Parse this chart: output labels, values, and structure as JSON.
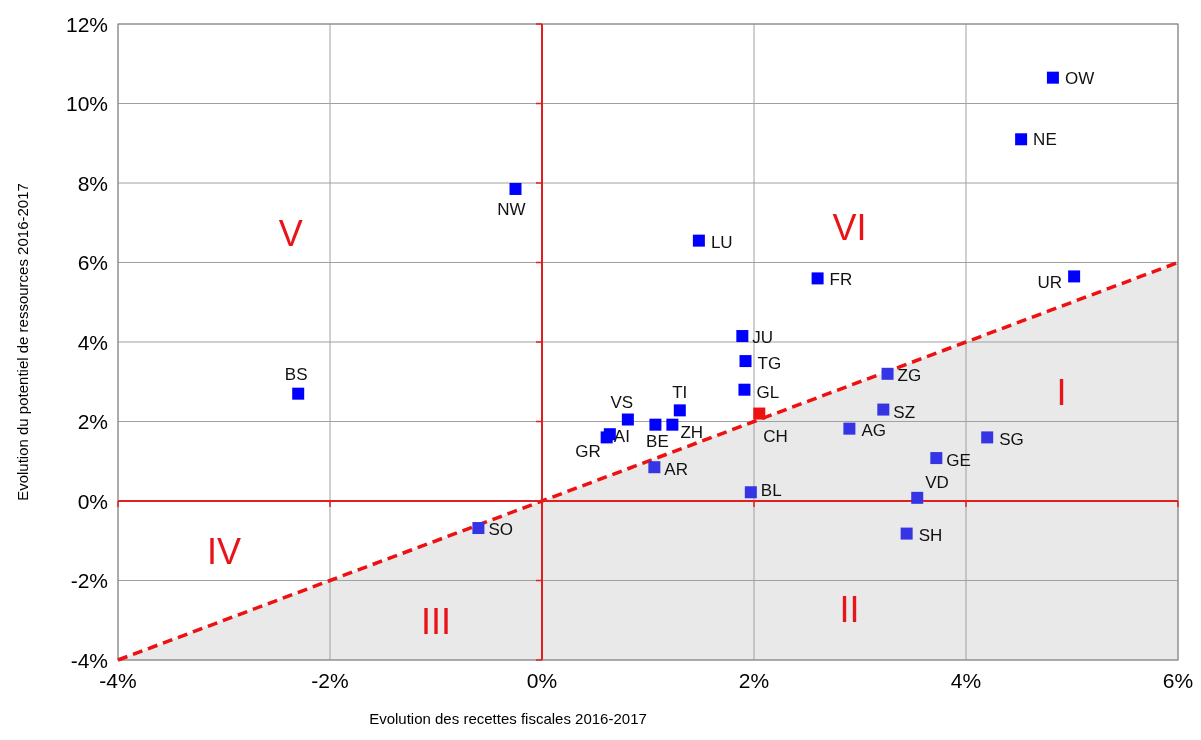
{
  "chart_data": {
    "type": "scatter",
    "xlabel": "Evolution  des recettes fiscales 2016-2017",
    "ylabel": "Evolution du potentiel de ressources 2016-2017",
    "xlim": [
      -4,
      6
    ],
    "ylim": [
      -4,
      12
    ],
    "xticks": [
      {
        "value": -4,
        "label": "-4%"
      },
      {
        "value": -2,
        "label": "-2%"
      },
      {
        "value": 0,
        "label": "0%"
      },
      {
        "value": 2,
        "label": "2%"
      },
      {
        "value": 4,
        "label": "4%"
      },
      {
        "value": 6,
        "label": "6%"
      }
    ],
    "yticks": [
      {
        "value": -4,
        "label": "-4%"
      },
      {
        "value": -2,
        "label": "-2%"
      },
      {
        "value": 0,
        "label": "0%"
      },
      {
        "value": 2,
        "label": "2%"
      },
      {
        "value": 4,
        "label": "4%"
      },
      {
        "value": 6,
        "label": "6%"
      },
      {
        "value": 8,
        "label": "8%"
      },
      {
        "value": 10,
        "label": "10%"
      },
      {
        "value": 12,
        "label": "12%"
      }
    ],
    "grid": true,
    "series": [
      {
        "type": "line",
        "color": "#ee1111",
        "line_style": "dashed",
        "x": [
          -4,
          -2,
          0,
          2,
          4,
          6
        ],
        "values": [
          -4,
          -2,
          0,
          2,
          4,
          6
        ],
        "lower": [
          -4,
          -4,
          -4,
          -4,
          -4,
          -4
        ],
        "upper": [
          -4,
          -2,
          0,
          2,
          4,
          6
        ]
      },
      {
        "type": "scatter",
        "marker": "square",
        "x": [
          4.82,
          4.52,
          -0.25,
          1.48,
          2.6,
          5.02,
          1.89,
          1.92,
          3.26,
          1.91,
          -2.3,
          1.3,
          3.22,
          0.81,
          2.05,
          1.07,
          1.23,
          0.64,
          0.61,
          2.9,
          4.2,
          3.72,
          1.06,
          1.97,
          3.54,
          -0.6,
          3.44
        ],
        "values": [
          10.65,
          9.1,
          7.85,
          6.55,
          5.6,
          5.65,
          4.15,
          3.52,
          3.2,
          2.8,
          2.7,
          2.28,
          2.3,
          2.05,
          2.2,
          1.92,
          1.92,
          1.68,
          1.6,
          1.82,
          1.6,
          1.08,
          0.85,
          0.22,
          0.08,
          -0.68,
          -0.82
        ],
        "colors": [
          "#0000ff",
          "#0000ff",
          "#0000ff",
          "#0000ff",
          "#0000ff",
          "#0000ff",
          "#0000ff",
          "#0000ff",
          "#3535e6",
          "#0000ff",
          "#0000ff",
          "#0000ff",
          "#3535e6",
          "#0000ff",
          "#ee1111",
          "#0000ff",
          "#0000ff",
          "#0000ff",
          "#0000ff",
          "#3535e6",
          "#3535e6",
          "#3535e6",
          "#3535e6",
          "#3535e6",
          "#3535e6",
          "#3535e6",
          "#3535e6"
        ]
      }
    ],
    "annotations": [
      {
        "text": "OW",
        "x": 4.82,
        "y": 10.65
      },
      {
        "text": "NE",
        "x": 4.52,
        "y": 9.1
      },
      {
        "text": "NW",
        "x": -0.25,
        "y": 7.85
      },
      {
        "text": "LU",
        "x": 1.48,
        "y": 6.55
      },
      {
        "text": "FR",
        "x": 2.6,
        "y": 5.6
      },
      {
        "text": "UR",
        "x": 5.02,
        "y": 5.65
      },
      {
        "text": "JU",
        "x": 1.89,
        "y": 4.15
      },
      {
        "text": "TG",
        "x": 1.92,
        "y": 3.52
      },
      {
        "text": "ZG",
        "x": 3.26,
        "y": 3.2
      },
      {
        "text": "GL",
        "x": 1.91,
        "y": 2.8
      },
      {
        "text": "BS",
        "x": -2.3,
        "y": 2.7
      },
      {
        "text": "TI",
        "x": 1.3,
        "y": 2.28
      },
      {
        "text": "SZ",
        "x": 3.22,
        "y": 2.3
      },
      {
        "text": "VS",
        "x": 0.81,
        "y": 2.05
      },
      {
        "text": "CH",
        "x": 2.05,
        "y": 2.2
      },
      {
        "text": "BE",
        "x": 1.07,
        "y": 1.92
      },
      {
        "text": "ZH",
        "x": 1.23,
        "y": 1.92
      },
      {
        "text": "AI",
        "x": 0.64,
        "y": 1.68
      },
      {
        "text": "GR",
        "x": 0.61,
        "y": 1.6
      },
      {
        "text": "AG",
        "x": 2.9,
        "y": 1.82
      },
      {
        "text": "SG",
        "x": 4.2,
        "y": 1.6
      },
      {
        "text": "GE",
        "x": 3.72,
        "y": 1.08
      },
      {
        "text": "AR",
        "x": 1.06,
        "y": 0.85
      },
      {
        "text": "BL",
        "x": 1.97,
        "y": 0.22
      },
      {
        "text": "VD",
        "x": 3.54,
        "y": 0.08
      },
      {
        "text": "SO",
        "x": -0.6,
        "y": -0.68
      },
      {
        "text": "SH",
        "x": 3.44,
        "y": -0.82
      },
      "V",
      "VI",
      "I",
      "IV",
      "III",
      "II"
    ]
  }
}
